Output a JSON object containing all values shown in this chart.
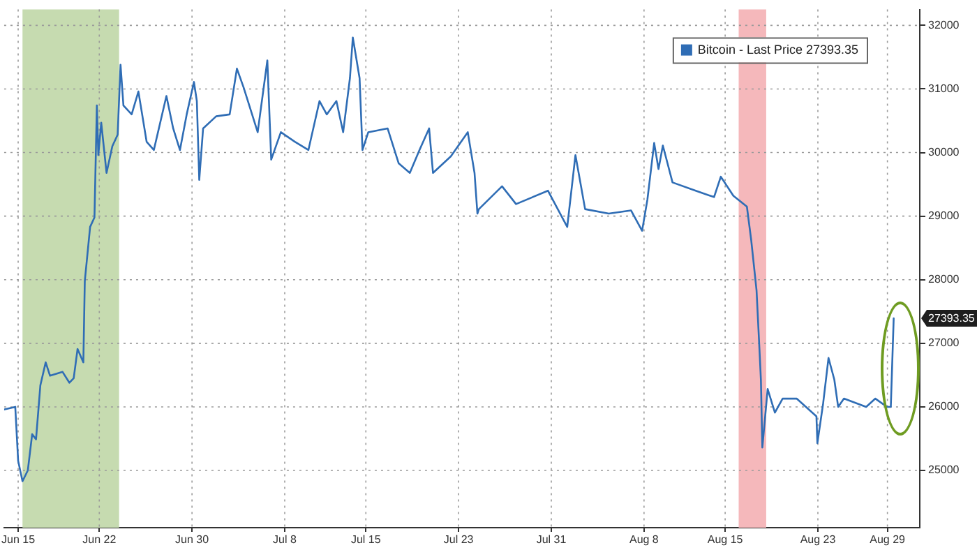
{
  "chart_data": {
    "type": "line",
    "x": [
      "--06-13T20:00",
      "--06-14T18:00",
      "--06-15T00:00",
      "--06-15T09:00",
      "--06-15T20:00",
      "--06-16T05:00",
      "--06-16T13:00",
      "--06-16T22:00",
      "--06-17T09:00",
      "--06-17T18:00",
      "--06-18T20:00",
      "--06-19T10:00",
      "--06-19T19:00",
      "--06-20T03:00",
      "--06-20T15:00",
      "--06-20T18:00",
      "--06-21T05:00",
      "--06-21T14:00",
      "--06-21T19:00",
      "--06-21T22:00",
      "--06-22T04:00",
      "--06-22T15:00",
      "--06-23T03:00",
      "--06-23T14:00",
      "--06-23T20:00",
      "--06-24T02:00",
      "--06-24T19:00",
      "--06-25T09:00",
      "--06-26T02:00",
      "--06-26T17:00",
      "--06-27T19:00",
      "--06-28T09:00",
      "--06-28T23:00",
      "--06-29T13:00",
      "--06-30T04:00",
      "--06-30T10:00",
      "--06-30T15:00",
      "--06-30T23:00",
      "--07-02T02:00",
      "--07-03T06:00",
      "--07-03T21:00",
      "--07-04T11:00",
      "--07-05T16:00",
      "--07-06T12:00",
      "--07-06T20:00",
      "--07-07T16:00",
      "--07-08T21:00",
      "--07-10T01:00",
      "--07-11T00:00",
      "--07-11T15:00",
      "--07-12T11:00",
      "--07-13T01:00",
      "--07-13T15:00",
      "--07-13T21:00",
      "--07-14T11:00",
      "--07-14T17:00",
      "--07-15T05:00",
      "--07-16T21:00",
      "--07-17T20:00",
      "--07-18T19:00",
      "--07-19T15:00",
      "--07-20T11:00",
      "--07-20T19:00",
      "--07-22T08:00",
      "--07-23T19:00",
      "--07-24T09:00",
      "--07-24T15:00",
      "--07-24T18:00",
      "--07-26T18:00",
      "--07-27T23:00",
      "--07-30T17:00",
      "--08-01T09:00",
      "--08-02T02:00",
      "--08-02T22:00",
      "--08-04T23:00",
      "--08-06T21:00",
      "--08-07T20:00",
      "--08-08T07:00",
      "--08-08T21:00",
      "--08-09T06:00",
      "--08-09T15:00",
      "--08-10T11:00",
      "--08-12T11:00",
      "--08-14T01:00",
      "--08-14T15:00",
      "--08-15T17:00",
      "--08-16T21:00",
      "--08-17T06:00",
      "--08-17T17:00",
      "--08-17T23:00",
      "--08-18T02:00",
      "--08-18T05:00",
      "--08-18T16:00",
      "--08-19T07:00",
      "--08-19T23:00",
      "--08-21T04:00",
      "--08-22T21:00",
      "--08-22T23:00",
      "--08-23T11:00",
      "--08-23T22:00",
      "--08-24T10:00",
      "--08-24T18:00",
      "--08-25T06:00",
      "--08-27T04:00",
      "--08-27T23:00",
      "--08-28T23:00",
      "--08-29T07:00",
      "--08-29T13:00"
    ],
    "series": [
      {
        "name": "Bitcoin - Last Price 27393.35",
        "color": "#2f6db5",
        "values": [
          25960,
          26000,
          25150,
          24830,
          25000,
          25570,
          25490,
          26340,
          26700,
          26490,
          26550,
          26380,
          26450,
          26910,
          26700,
          27980,
          28830,
          28980,
          30740,
          29960,
          30470,
          29680,
          30100,
          30280,
          31380,
          30740,
          30600,
          30960,
          30170,
          30040,
          30890,
          30380,
          30040,
          30600,
          31110,
          30810,
          29570,
          30380,
          30570,
          30600,
          31320,
          31020,
          30320,
          31450,
          29890,
          30320,
          30170,
          30040,
          30810,
          30600,
          30810,
          30320,
          31170,
          31810,
          31170,
          30040,
          30320,
          30380,
          29830,
          29680,
          30040,
          30380,
          29680,
          29940,
          30320,
          29680,
          29040,
          29110,
          29470,
          29190,
          29400,
          28830,
          29960,
          29110,
          29040,
          29090,
          28770,
          29260,
          30150,
          29740,
          30110,
          29530,
          29400,
          29300,
          29620,
          29320,
          29150,
          28620,
          27830,
          26910,
          26430,
          25360,
          26280,
          25910,
          26130,
          26130,
          25850,
          25430,
          26060,
          26770,
          26430,
          26000,
          26130,
          26000,
          26130,
          26000,
          26000,
          27393.35
        ]
      }
    ],
    "xlim": [
      "--06-13T19:00",
      "--08-31T19:00"
    ],
    "xticks": [
      {
        "value": "--06-15",
        "label": "Jun 15"
      },
      {
        "value": "--06-22",
        "label": "Jun 22"
      },
      {
        "value": "--06-30",
        "label": "Jun 30"
      },
      {
        "value": "--07-08",
        "label": "Jul 8"
      },
      {
        "value": "--07-15",
        "label": "Jul 15"
      },
      {
        "value": "--07-23",
        "label": "Jul 23"
      },
      {
        "value": "--07-31",
        "label": "Jul 31"
      },
      {
        "value": "--08-08",
        "label": "Aug 8"
      },
      {
        "value": "--08-15",
        "label": "Aug 15"
      },
      {
        "value": "--08-23",
        "label": "Aug 23"
      },
      {
        "value": "--08-29",
        "label": "Aug 29"
      }
    ],
    "ylim": [
      24100,
      32250
    ],
    "yticks": [
      25000,
      26000,
      27000,
      28000,
      29000,
      30000,
      31000,
      32000
    ],
    "bands": [
      {
        "axis": "x",
        "from": "--06-15T09:00",
        "to": "--06-23T17:00",
        "color": "#c6dbb0"
      },
      {
        "axis": "x",
        "from": "--08-16T04:00",
        "to": "--08-18T13:00",
        "color": "#f5b8bb"
      }
    ],
    "annotations": [
      "27393.35"
    ],
    "grid": true,
    "legend": "top right",
    "marker": "none",
    "line_style": "solid"
  }
}
